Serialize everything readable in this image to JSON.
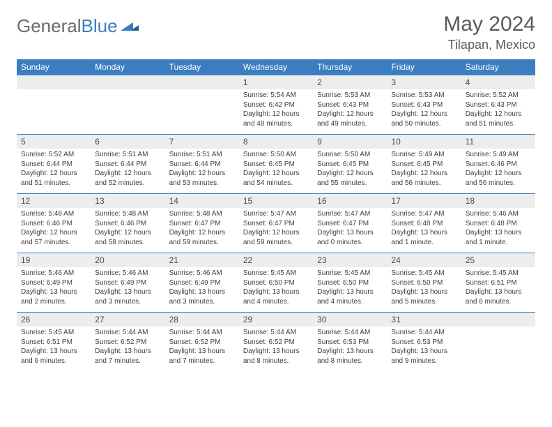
{
  "brand": {
    "part1": "General",
    "part2": "Blue"
  },
  "title": "May 2024",
  "location": "Tilapan, Mexico",
  "colors": {
    "header_bg": "#3b7ec0",
    "header_text": "#ffffff",
    "daynum_bg": "#ededed",
    "divider": "#3b7ec0",
    "body_text": "#3f3f3f",
    "title_text": "#5a5a5a",
    "logo_gray": "#6b6b6b",
    "logo_blue": "#3b7ec0"
  },
  "day_names": [
    "Sunday",
    "Monday",
    "Tuesday",
    "Wednesday",
    "Thursday",
    "Friday",
    "Saturday"
  ],
  "weeks": [
    [
      {
        "n": "",
        "sr": "",
        "ss": "",
        "dl": ""
      },
      {
        "n": "",
        "sr": "",
        "ss": "",
        "dl": ""
      },
      {
        "n": "",
        "sr": "",
        "ss": "",
        "dl": ""
      },
      {
        "n": "1",
        "sr": "5:54 AM",
        "ss": "6:42 PM",
        "dl": "12 hours and 48 minutes."
      },
      {
        "n": "2",
        "sr": "5:53 AM",
        "ss": "6:43 PM",
        "dl": "12 hours and 49 minutes."
      },
      {
        "n": "3",
        "sr": "5:53 AM",
        "ss": "6:43 PM",
        "dl": "12 hours and 50 minutes."
      },
      {
        "n": "4",
        "sr": "5:52 AM",
        "ss": "6:43 PM",
        "dl": "12 hours and 51 minutes."
      }
    ],
    [
      {
        "n": "5",
        "sr": "5:52 AM",
        "ss": "6:44 PM",
        "dl": "12 hours and 51 minutes."
      },
      {
        "n": "6",
        "sr": "5:51 AM",
        "ss": "6:44 PM",
        "dl": "12 hours and 52 minutes."
      },
      {
        "n": "7",
        "sr": "5:51 AM",
        "ss": "6:44 PM",
        "dl": "12 hours and 53 minutes."
      },
      {
        "n": "8",
        "sr": "5:50 AM",
        "ss": "6:45 PM",
        "dl": "12 hours and 54 minutes."
      },
      {
        "n": "9",
        "sr": "5:50 AM",
        "ss": "6:45 PM",
        "dl": "12 hours and 55 minutes."
      },
      {
        "n": "10",
        "sr": "5:49 AM",
        "ss": "6:45 PM",
        "dl": "12 hours and 56 minutes."
      },
      {
        "n": "11",
        "sr": "5:49 AM",
        "ss": "6:46 PM",
        "dl": "12 hours and 56 minutes."
      }
    ],
    [
      {
        "n": "12",
        "sr": "5:48 AM",
        "ss": "6:46 PM",
        "dl": "12 hours and 57 minutes."
      },
      {
        "n": "13",
        "sr": "5:48 AM",
        "ss": "6:46 PM",
        "dl": "12 hours and 58 minutes."
      },
      {
        "n": "14",
        "sr": "5:48 AM",
        "ss": "6:47 PM",
        "dl": "12 hours and 59 minutes."
      },
      {
        "n": "15",
        "sr": "5:47 AM",
        "ss": "6:47 PM",
        "dl": "12 hours and 59 minutes."
      },
      {
        "n": "16",
        "sr": "5:47 AM",
        "ss": "6:47 PM",
        "dl": "13 hours and 0 minutes."
      },
      {
        "n": "17",
        "sr": "5:47 AM",
        "ss": "6:48 PM",
        "dl": "13 hours and 1 minute."
      },
      {
        "n": "18",
        "sr": "5:46 AM",
        "ss": "6:48 PM",
        "dl": "13 hours and 1 minute."
      }
    ],
    [
      {
        "n": "19",
        "sr": "5:46 AM",
        "ss": "6:49 PM",
        "dl": "13 hours and 2 minutes."
      },
      {
        "n": "20",
        "sr": "5:46 AM",
        "ss": "6:49 PM",
        "dl": "13 hours and 3 minutes."
      },
      {
        "n": "21",
        "sr": "5:46 AM",
        "ss": "6:49 PM",
        "dl": "13 hours and 3 minutes."
      },
      {
        "n": "22",
        "sr": "5:45 AM",
        "ss": "6:50 PM",
        "dl": "13 hours and 4 minutes."
      },
      {
        "n": "23",
        "sr": "5:45 AM",
        "ss": "6:50 PM",
        "dl": "13 hours and 4 minutes."
      },
      {
        "n": "24",
        "sr": "5:45 AM",
        "ss": "6:50 PM",
        "dl": "13 hours and 5 minutes."
      },
      {
        "n": "25",
        "sr": "5:45 AM",
        "ss": "6:51 PM",
        "dl": "13 hours and 6 minutes."
      }
    ],
    [
      {
        "n": "26",
        "sr": "5:45 AM",
        "ss": "6:51 PM",
        "dl": "13 hours and 6 minutes."
      },
      {
        "n": "27",
        "sr": "5:44 AM",
        "ss": "6:52 PM",
        "dl": "13 hours and 7 minutes."
      },
      {
        "n": "28",
        "sr": "5:44 AM",
        "ss": "6:52 PM",
        "dl": "13 hours and 7 minutes."
      },
      {
        "n": "29",
        "sr": "5:44 AM",
        "ss": "6:52 PM",
        "dl": "13 hours and 8 minutes."
      },
      {
        "n": "30",
        "sr": "5:44 AM",
        "ss": "6:53 PM",
        "dl": "13 hours and 8 minutes."
      },
      {
        "n": "31",
        "sr": "5:44 AM",
        "ss": "6:53 PM",
        "dl": "13 hours and 9 minutes."
      },
      {
        "n": "",
        "sr": "",
        "ss": "",
        "dl": ""
      }
    ]
  ],
  "labels": {
    "sunrise": "Sunrise:",
    "sunset": "Sunset:",
    "daylight": "Daylight:"
  }
}
